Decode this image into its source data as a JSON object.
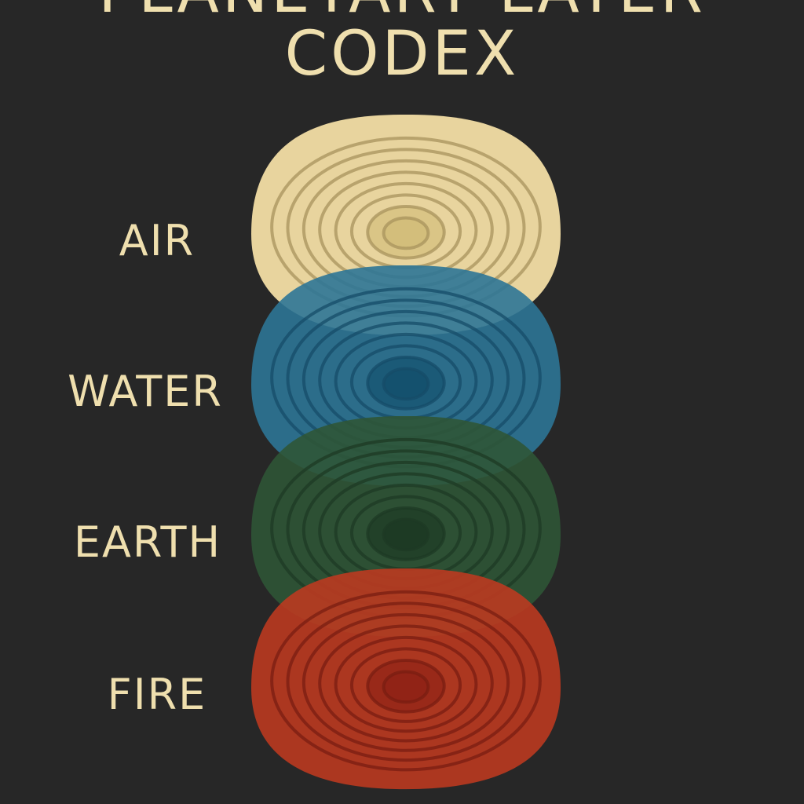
{
  "title": {
    "line1": "PLANETARY LAYER",
    "line2": "CODEX"
  },
  "layers": [
    {
      "label": "AIR",
      "color": "#e8d49e",
      "ring": "#a8935c",
      "core": "#cdb873"
    },
    {
      "label": "WATER",
      "color": "#2d7596",
      "ring": "#164c68",
      "core": "#0f4a68"
    },
    {
      "label": "EARTH",
      "color": "#2f5536",
      "ring": "#1d3a24",
      "core": "#1a3420"
    },
    {
      "label": "FIRE",
      "color": "#bb3a20",
      "ring": "#7a1e12",
      "core": "#8a1f14"
    }
  ],
  "colors": {
    "background": "#272727",
    "text": "#efdfae"
  }
}
